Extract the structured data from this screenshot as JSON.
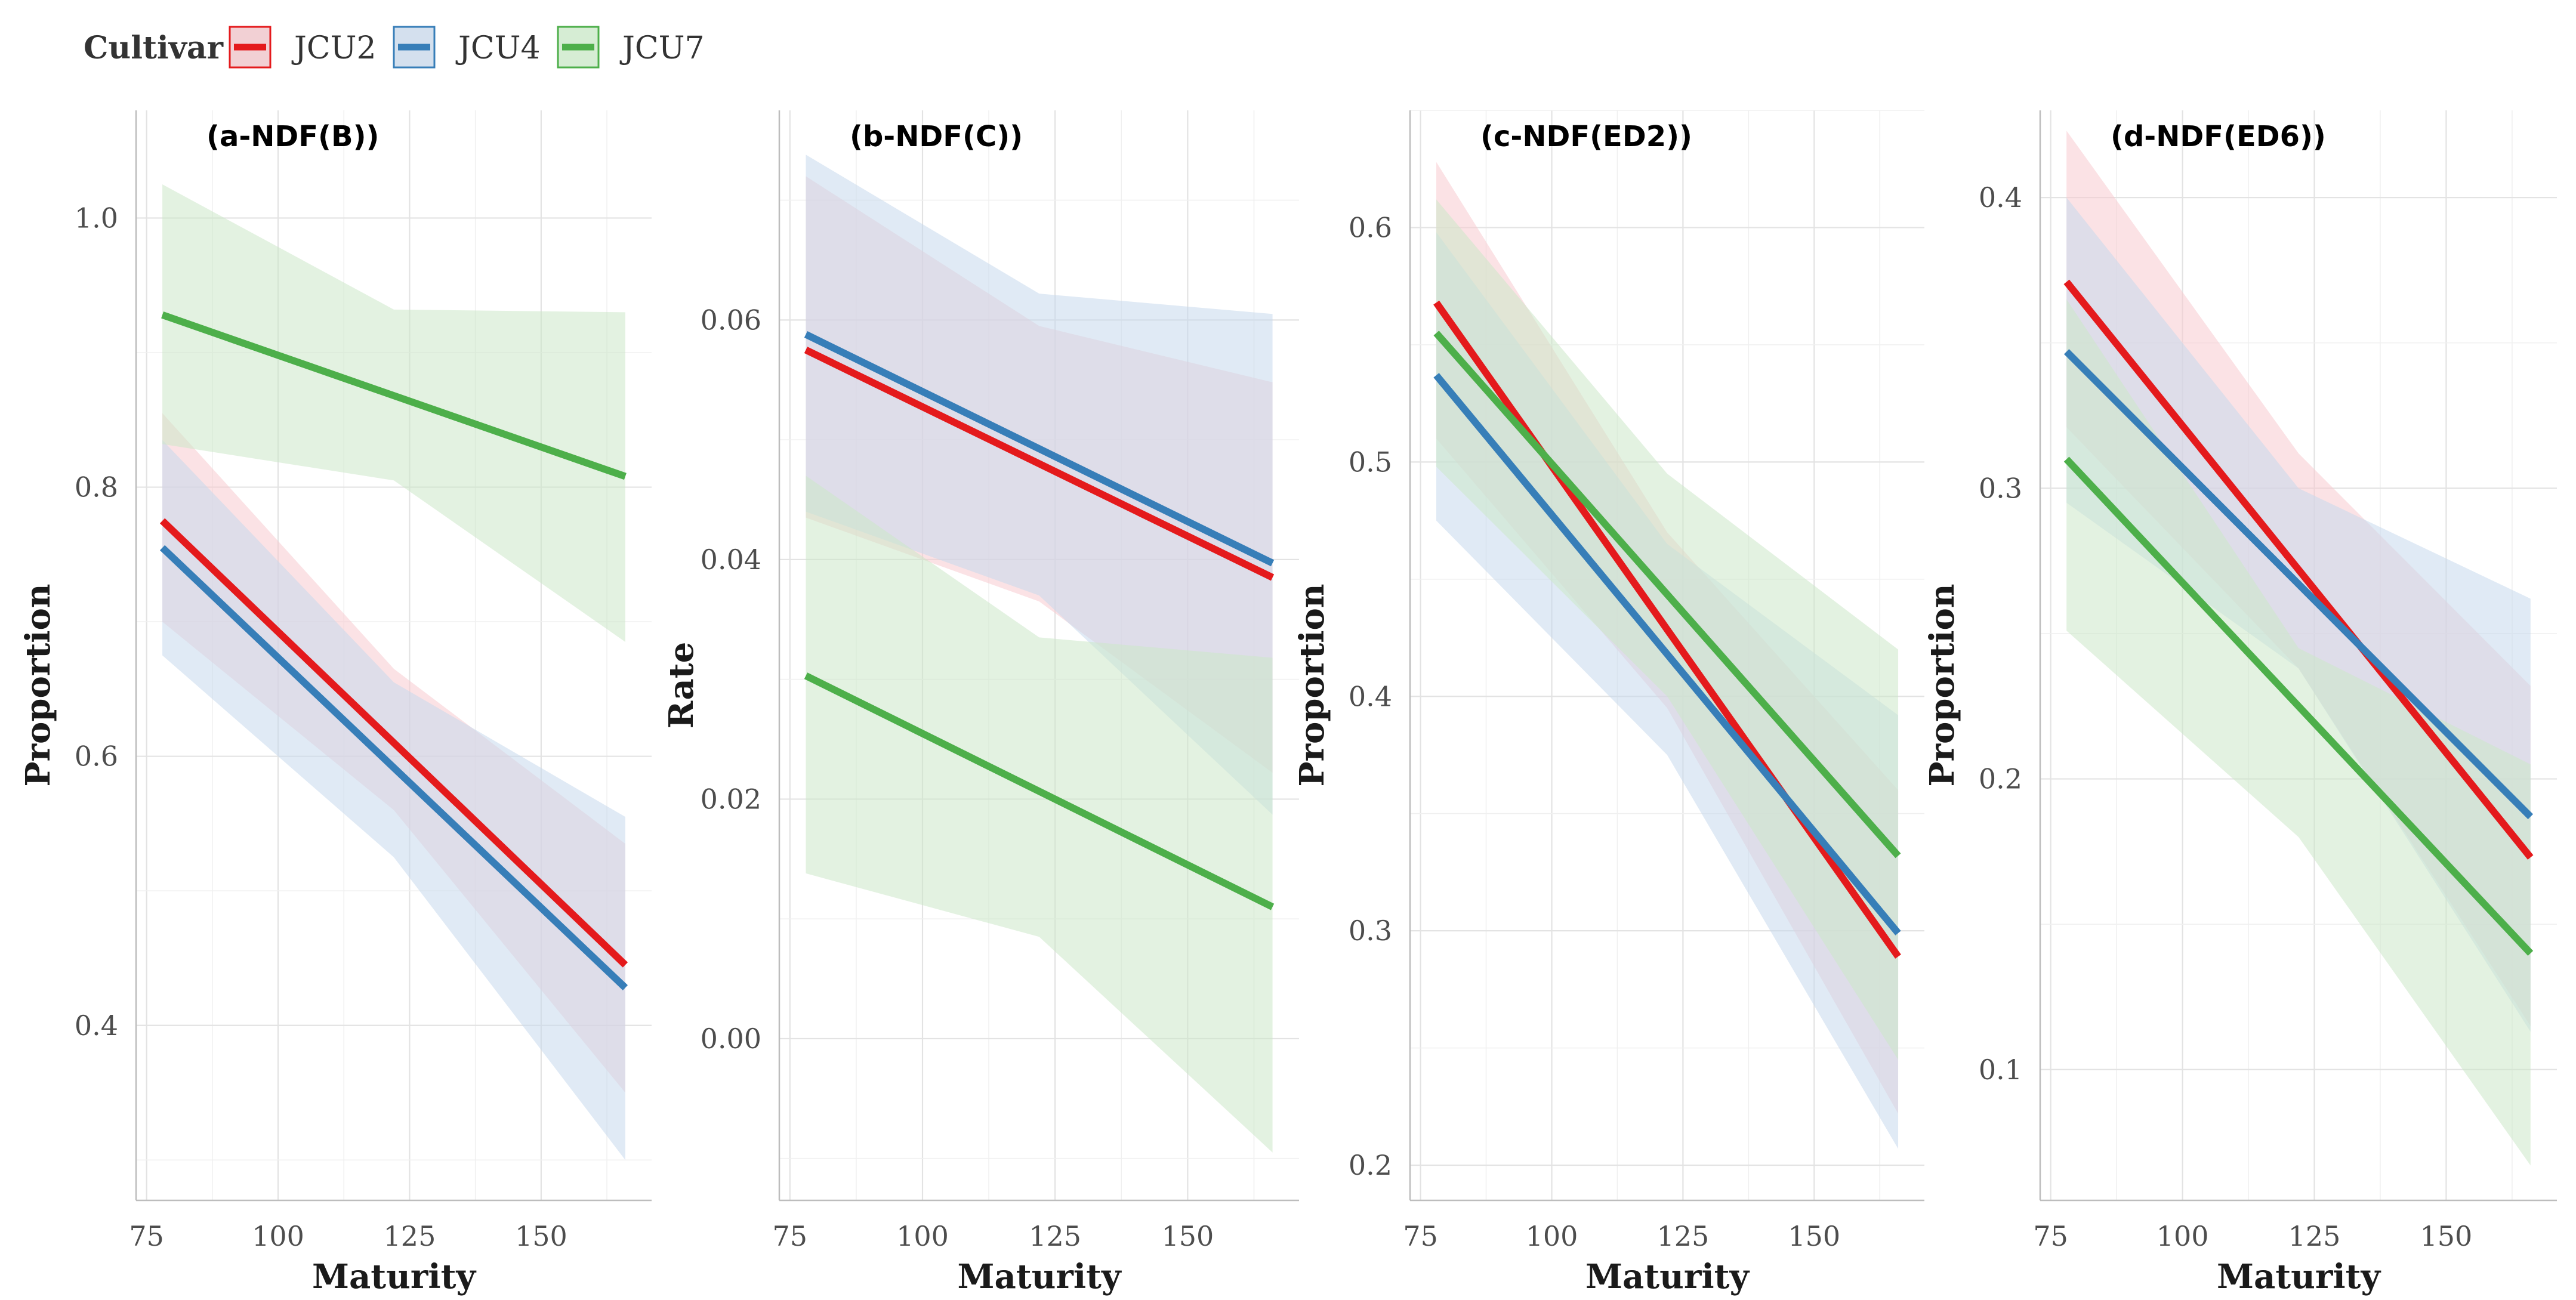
{
  "legend": {
    "title": "Cultivar",
    "items": [
      {
        "label": "JCU2",
        "color": "#E41A1C"
      },
      {
        "label": "JCU4",
        "color": "#377EB8"
      },
      {
        "label": "JCU7",
        "color": "#4DAF4A"
      }
    ]
  },
  "chart_data": [
    {
      "type": "line",
      "title": "(a-NDF(B))",
      "xlabel": "Maturity",
      "ylabel": "Proportion",
      "xlim": [
        73,
        171
      ],
      "ylim": [
        0.27,
        1.08
      ],
      "xticks": [
        75,
        100,
        125,
        150
      ],
      "yticks": [
        0.4,
        0.6,
        0.8,
        1.0
      ],
      "ytick_labels": [
        "0.4",
        "0.6",
        "0.8",
        "1.0"
      ],
      "grid": true,
      "series": [
        {
          "name": "JCU2",
          "color": "#E41A1C",
          "x": [
            78,
            166
          ],
          "y": [
            0.775,
            0.445
          ],
          "ci_x": [
            78,
            122,
            166
          ],
          "ci_upper": [
            0.855,
            0.665,
            0.535
          ],
          "ci_lower": [
            0.7,
            0.56,
            0.35
          ]
        },
        {
          "name": "JCU4",
          "color": "#377EB8",
          "x": [
            78,
            166
          ],
          "y": [
            0.755,
            0.428
          ],
          "ci_x": [
            78,
            122,
            166
          ],
          "ci_upper": [
            0.835,
            0.655,
            0.555
          ],
          "ci_lower": [
            0.675,
            0.525,
            0.3
          ]
        },
        {
          "name": "JCU7",
          "color": "#4DAF4A",
          "x": [
            78,
            166
          ],
          "y": [
            0.928,
            0.808
          ],
          "ci_x": [
            78,
            122,
            166
          ],
          "ci_upper": [
            1.025,
            0.932,
            0.93
          ],
          "ci_lower": [
            0.832,
            0.805,
            0.685
          ]
        }
      ]
    },
    {
      "type": "line",
      "title": "(b-NDF(C))",
      "xlabel": "Maturity",
      "ylabel": "Rate",
      "xlim": [
        73,
        171
      ],
      "ylim": [
        -0.0135,
        0.0775
      ],
      "xticks": [
        75,
        100,
        125,
        150
      ],
      "yticks": [
        0.0,
        0.02,
        0.04,
        0.06
      ],
      "ytick_labels": [
        "0.00",
        "0.02",
        "0.04",
        "0.06"
      ],
      "grid": true,
      "series": [
        {
          "name": "JCU2",
          "color": "#E41A1C",
          "x": [
            78,
            166
          ],
          "y": [
            0.0575,
            0.0385
          ],
          "ci_x": [
            78,
            122,
            166
          ],
          "ci_upper": [
            0.072,
            0.0595,
            0.0548
          ],
          "ci_lower": [
            0.0435,
            0.0365,
            0.0222
          ]
        },
        {
          "name": "JCU4",
          "color": "#377EB8",
          "x": [
            78,
            166
          ],
          "y": [
            0.0588,
            0.0397
          ],
          "ci_x": [
            78,
            122,
            166
          ],
          "ci_upper": [
            0.0738,
            0.0622,
            0.0605
          ],
          "ci_lower": [
            0.044,
            0.037,
            0.0187
          ]
        },
        {
          "name": "JCU7",
          "color": "#4DAF4A",
          "x": [
            78,
            166
          ],
          "y": [
            0.0303,
            0.011
          ],
          "ci_x": [
            78,
            122,
            166
          ],
          "ci_upper": [
            0.047,
            0.0335,
            0.0318
          ],
          "ci_lower": [
            0.0138,
            0.0085,
            -0.0095
          ]
        }
      ]
    },
    {
      "type": "line",
      "title": "(c-NDF(ED2))",
      "xlabel": "Maturity",
      "ylabel": "Proportion",
      "xlim": [
        73,
        171
      ],
      "ylim": [
        0.185,
        0.65
      ],
      "xticks": [
        75,
        100,
        125,
        150
      ],
      "yticks": [
        0.2,
        0.3,
        0.4,
        0.5,
        0.6
      ],
      "ytick_labels": [
        "0.2",
        "0.3",
        "0.4",
        "0.5",
        "0.6"
      ],
      "grid": true,
      "series": [
        {
          "name": "JCU2",
          "color": "#E41A1C",
          "x": [
            78,
            166
          ],
          "y": [
            0.568,
            0.289
          ],
          "ci_x": [
            78,
            122,
            166
          ],
          "ci_upper": [
            0.628,
            0.47,
            0.36
          ],
          "ci_lower": [
            0.51,
            0.395,
            0.222
          ]
        },
        {
          "name": "JCU4",
          "color": "#377EB8",
          "x": [
            78,
            166
          ],
          "y": [
            0.537,
            0.299
          ],
          "ci_x": [
            78,
            122,
            166
          ],
          "ci_upper": [
            0.598,
            0.465,
            0.392
          ],
          "ci_lower": [
            0.475,
            0.375,
            0.207
          ]
        },
        {
          "name": "JCU7",
          "color": "#4DAF4A",
          "x": [
            78,
            166
          ],
          "y": [
            0.555,
            0.332
          ],
          "ci_x": [
            78,
            122,
            166
          ],
          "ci_upper": [
            0.612,
            0.495,
            0.42
          ],
          "ci_lower": [
            0.498,
            0.4,
            0.245
          ]
        }
      ]
    },
    {
      "type": "line",
      "title": "(d-NDF(ED6))",
      "xlabel": "Maturity",
      "ylabel": "Proportion",
      "xlim": [
        73,
        171
      ],
      "ylim": [
        0.055,
        0.43
      ],
      "xticks": [
        75,
        100,
        125,
        150
      ],
      "yticks": [
        0.1,
        0.2,
        0.3,
        0.4
      ],
      "ytick_labels": [
        "0.1",
        "0.2",
        "0.3",
        "0.4"
      ],
      "grid": true,
      "series": [
        {
          "name": "JCU2",
          "color": "#E41A1C",
          "x": [
            78,
            166
          ],
          "y": [
            0.371,
            0.173
          ],
          "ci_x": [
            78,
            122,
            166
          ],
          "ci_upper": [
            0.423,
            0.312,
            0.232
          ],
          "ci_lower": [
            0.321,
            0.238,
            0.115
          ]
        },
        {
          "name": "JCU4",
          "color": "#377EB8",
          "x": [
            78,
            166
          ],
          "y": [
            0.347,
            0.187
          ],
          "ci_x": [
            78,
            122,
            166
          ],
          "ci_upper": [
            0.4,
            0.3,
            0.262
          ],
          "ci_lower": [
            0.295,
            0.238,
            0.113
          ]
        },
        {
          "name": "JCU7",
          "color": "#4DAF4A",
          "x": [
            78,
            166
          ],
          "y": [
            0.31,
            0.14
          ],
          "ci_x": [
            78,
            122,
            166
          ],
          "ci_upper": [
            0.365,
            0.245,
            0.205
          ],
          "ci_lower": [
            0.251,
            0.18,
            0.067
          ]
        }
      ]
    }
  ]
}
